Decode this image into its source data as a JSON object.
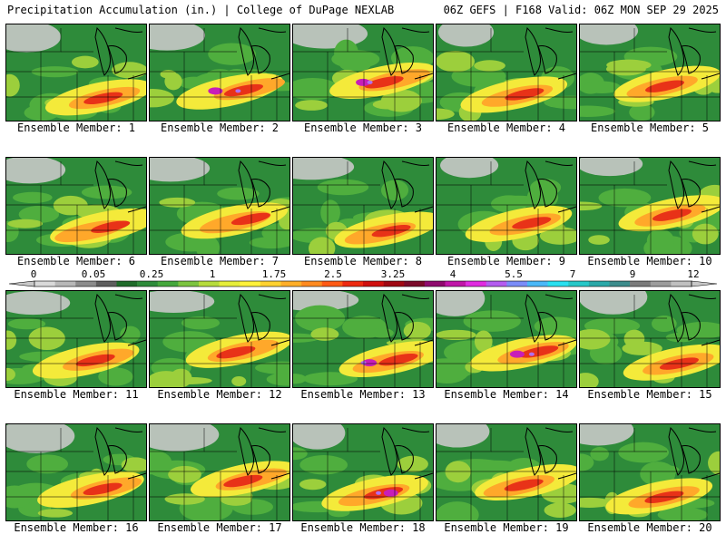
{
  "header": {
    "title_left": "Precipitation Accumulation (in.) | College of DuPage NEXLAB",
    "title_right": "06Z GEFS | F168 Valid: 06Z MON SEP 29 2025"
  },
  "colorbar": {
    "tick_labels": [
      "0",
      "0.05",
      "0.25",
      "1",
      "1.75",
      "2.5",
      "3.25",
      "4",
      "5.5",
      "7",
      "9",
      "12"
    ],
    "colors": [
      "#d9d9d9",
      "#b8b8b8",
      "#8c8c8c",
      "#5e5e5e",
      "#1f6b2a",
      "#2e8b3a",
      "#45a83c",
      "#7cc43f",
      "#b6dc3c",
      "#e6ee3a",
      "#fff23a",
      "#ffd230",
      "#ffae28",
      "#ff8a1f",
      "#ff5a14",
      "#ee2a10",
      "#d0100e",
      "#a00812",
      "#7a0a2a",
      "#8f0a6e",
      "#c016a8",
      "#e02ce0",
      "#b45cf0",
      "#7a8cf8",
      "#4ab8f8",
      "#29e0f0",
      "#27c8c8",
      "#2aa8a8",
      "#3c8c8c",
      "#7a7a7a",
      "#9c9c9c",
      "#c0c0c0"
    ],
    "arrow_color": "#c8c8c8"
  },
  "panels": [
    {
      "label": "Ensemble Member: 1"
    },
    {
      "label": "Ensemble Member: 2"
    },
    {
      "label": "Ensemble Member: 3"
    },
    {
      "label": "Ensemble Member: 4"
    },
    {
      "label": "Ensemble Member: 5"
    },
    {
      "label": "Ensemble Member: 6"
    },
    {
      "label": "Ensemble Member: 7"
    },
    {
      "label": "Ensemble Member: 8"
    },
    {
      "label": "Ensemble Member: 9"
    },
    {
      "label": "Ensemble Member: 10"
    },
    {
      "label": "Ensemble Member: 11"
    },
    {
      "label": "Ensemble Member: 12"
    },
    {
      "label": "Ensemble Member: 13"
    },
    {
      "label": "Ensemble Member: 14"
    },
    {
      "label": "Ensemble Member: 15"
    },
    {
      "label": "Ensemble Member: 16"
    },
    {
      "label": "Ensemble Member: 17"
    },
    {
      "label": "Ensemble Member: 18"
    },
    {
      "label": "Ensemble Member: 19"
    },
    {
      "label": "Ensemble Member: 20"
    }
  ],
  "map_colors": {
    "dry": "#c8c8c8",
    "light_green": "#2e8b3a",
    "mid_green": "#4fae3e",
    "lime": "#9ccf3c",
    "yellow": "#f4ea3a",
    "orange": "#ffa82a",
    "red": "#e83218",
    "darkred": "#b0101a",
    "magenta": "#c81eb8",
    "violet": "#b070f0",
    "lines": "#000000"
  }
}
